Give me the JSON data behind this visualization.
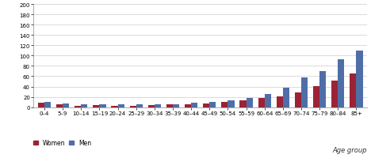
{
  "age_groups": [
    "0–4",
    "5–9",
    "10–14",
    "15–19",
    "20–24",
    "25–29",
    "30–34",
    "35–39",
    "40–44",
    "45–49",
    "50–54",
    "55–59",
    "60–64",
    "65–69",
    "70–74",
    "75–79",
    "80–84",
    "85+"
  ],
  "women": [
    8,
    5,
    3,
    4,
    3,
    3,
    4,
    5,
    6,
    7,
    10,
    14,
    18,
    21,
    29,
    41,
    51,
    65
  ],
  "men": [
    10,
    7,
    5,
    5,
    5,
    5,
    5,
    6,
    8,
    10,
    14,
    18,
    26,
    38,
    58,
    70,
    93,
    110
  ],
  "women_color": "#9b2335",
  "men_color": "#4f6ea8",
  "ylim": [
    0,
    200
  ],
  "yticks": [
    0,
    20,
    40,
    60,
    80,
    100,
    120,
    140,
    160,
    180,
    200
  ],
  "xlabel": "Age group",
  "legend_women": "Women",
  "legend_men": "Men",
  "bar_width": 0.35,
  "background_color": "#ffffff",
  "grid_color": "#cccccc",
  "tick_label_fontsize": 5.0,
  "axis_label_fontsize": 6.0,
  "legend_fontsize": 5.5
}
